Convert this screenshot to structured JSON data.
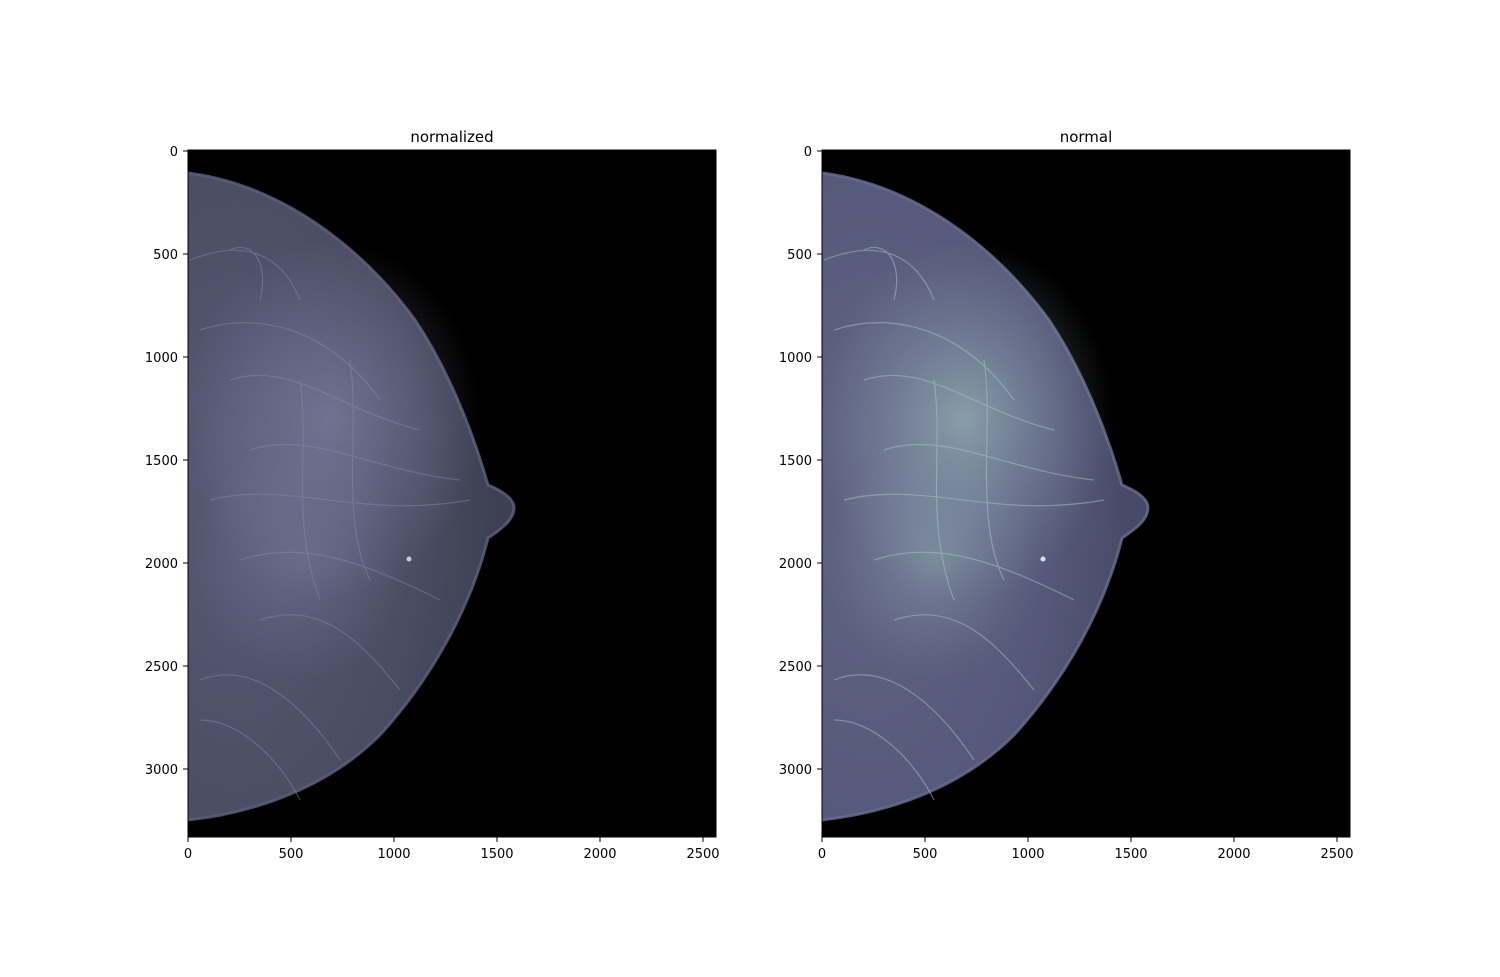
{
  "panels": [
    {
      "title": "normalized",
      "x_ticks": [
        "0",
        "500",
        "1000",
        "1500",
        "2000",
        "2500"
      ],
      "y_ticks": [
        "0",
        "500",
        "1000",
        "1500",
        "2000",
        "2500",
        "3000"
      ],
      "tissue_color": "#4a4c62",
      "fiber_color": "#8a8cb0",
      "fiber_highlight": "#9a9ec0"
    },
    {
      "title": "normal",
      "x_ticks": [
        "0",
        "500",
        "1000",
        "1500",
        "2000",
        "2500"
      ],
      "y_ticks": [
        "0",
        "500",
        "1000",
        "1500",
        "2000",
        "2500",
        "3000"
      ],
      "tissue_color": "#55587a",
      "fiber_color": "#8fa6b4",
      "fiber_highlight": "#a9c8c6"
    }
  ],
  "background_color": "#000000"
}
